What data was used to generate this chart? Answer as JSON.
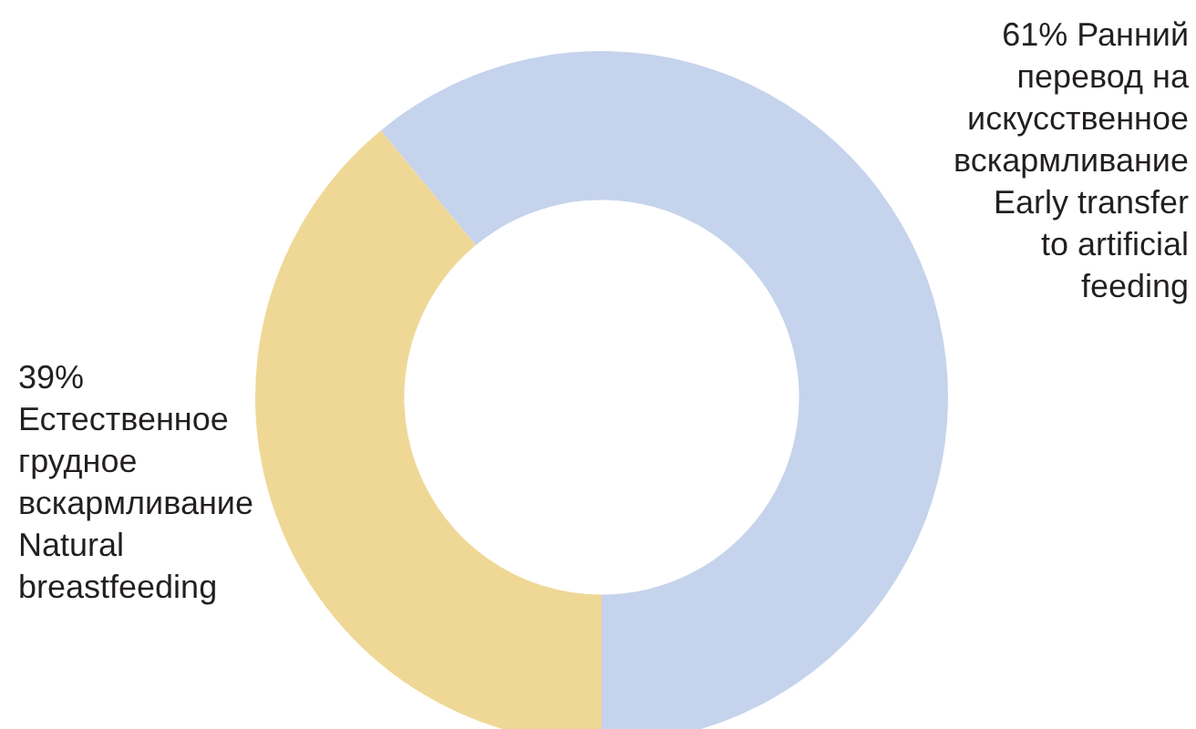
{
  "chart_data": {
    "type": "donut",
    "categories": [
      "Ранний\nперевод на\nискусственное\nвскармливание\nEarly transfer\nto artificial\nfeeding",
      "Естественное\nгрудное\nвскармливание\nNatural\nbreastfeeding"
    ],
    "values": [
      61,
      39
    ],
    "value_labels": [
      "61%",
      "39%"
    ],
    "colors": [
      "#c5d3ec",
      "#efd896"
    ]
  }
}
